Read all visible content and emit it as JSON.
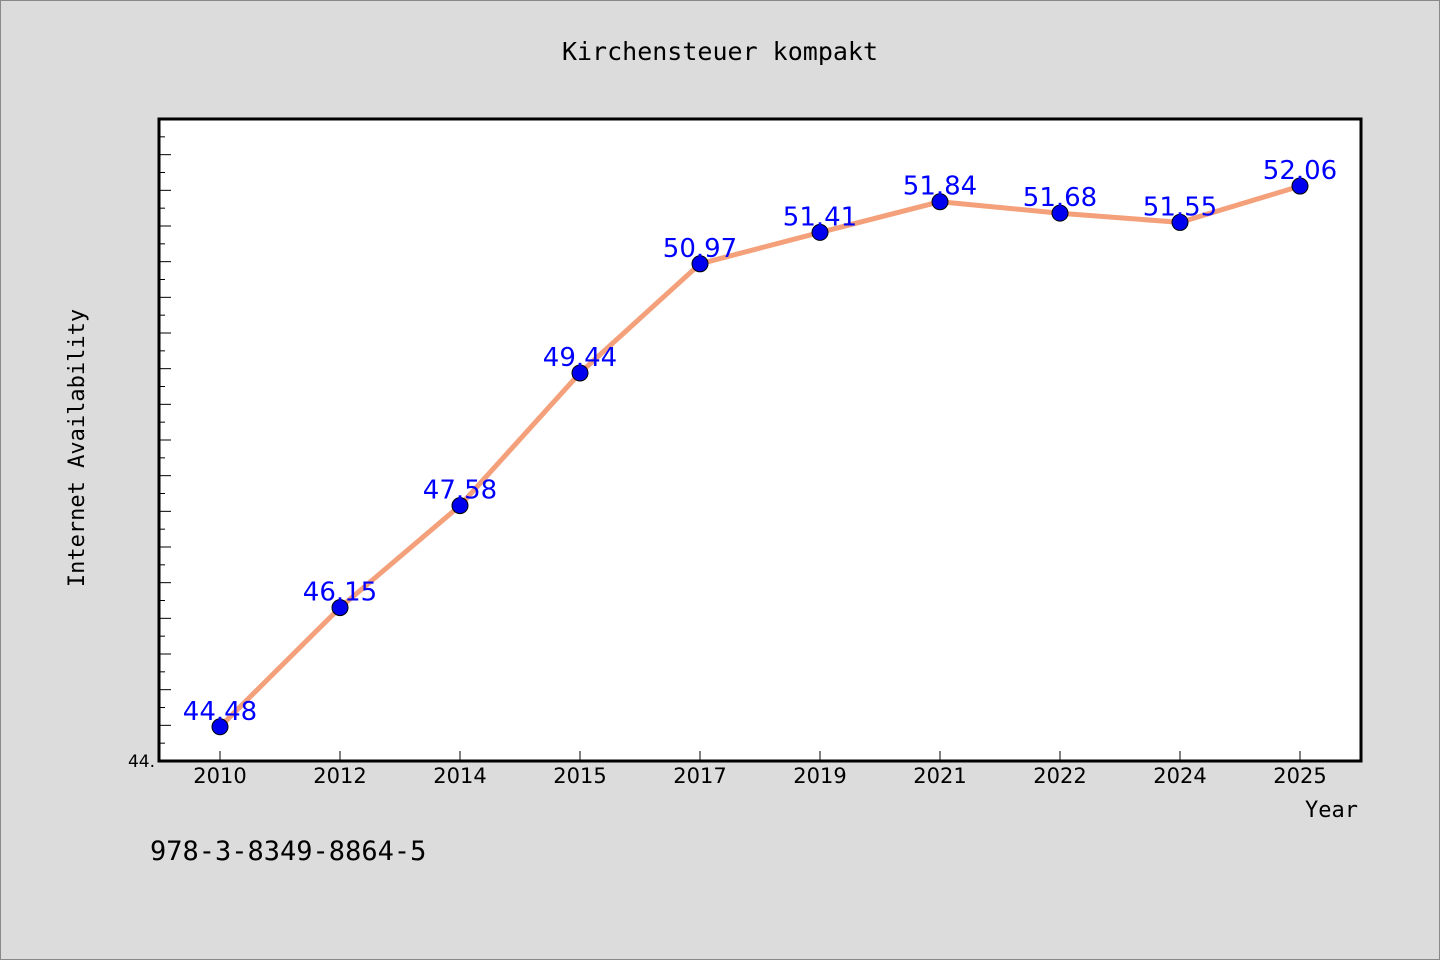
{
  "chart_data": {
    "type": "line",
    "title": "Kirchensteuer kompakt",
    "xlabel": "Year",
    "ylabel": "Internet Availability",
    "categories": [
      "2010",
      "2012",
      "2014",
      "2015",
      "2017",
      "2019",
      "2021",
      "2022",
      "2024",
      "2025"
    ],
    "series": [
      {
        "values": [
          44.48,
          46.15,
          47.58,
          49.44,
          50.97,
          51.41,
          51.84,
          51.68,
          51.55,
          52.06
        ]
      }
    ],
    "data_labels": [
      "44.48",
      "46.15",
      "47.58",
      "49.44",
      "50.97",
      "51.41",
      "51.84",
      "51.68",
      "51.55",
      "52.06"
    ],
    "ylim": [
      44.0,
      53.0
    ],
    "y_tick_label": "44.",
    "grid": false,
    "legend": "none",
    "colors": {
      "line": "#f4a07a",
      "marker": "#0000ee",
      "label": "#0000ff",
      "plot_bg": "#ffffff",
      "page_bg": "#dcdcdc"
    }
  },
  "footer": {
    "isbn": "978-3-8349-8864-5"
  }
}
